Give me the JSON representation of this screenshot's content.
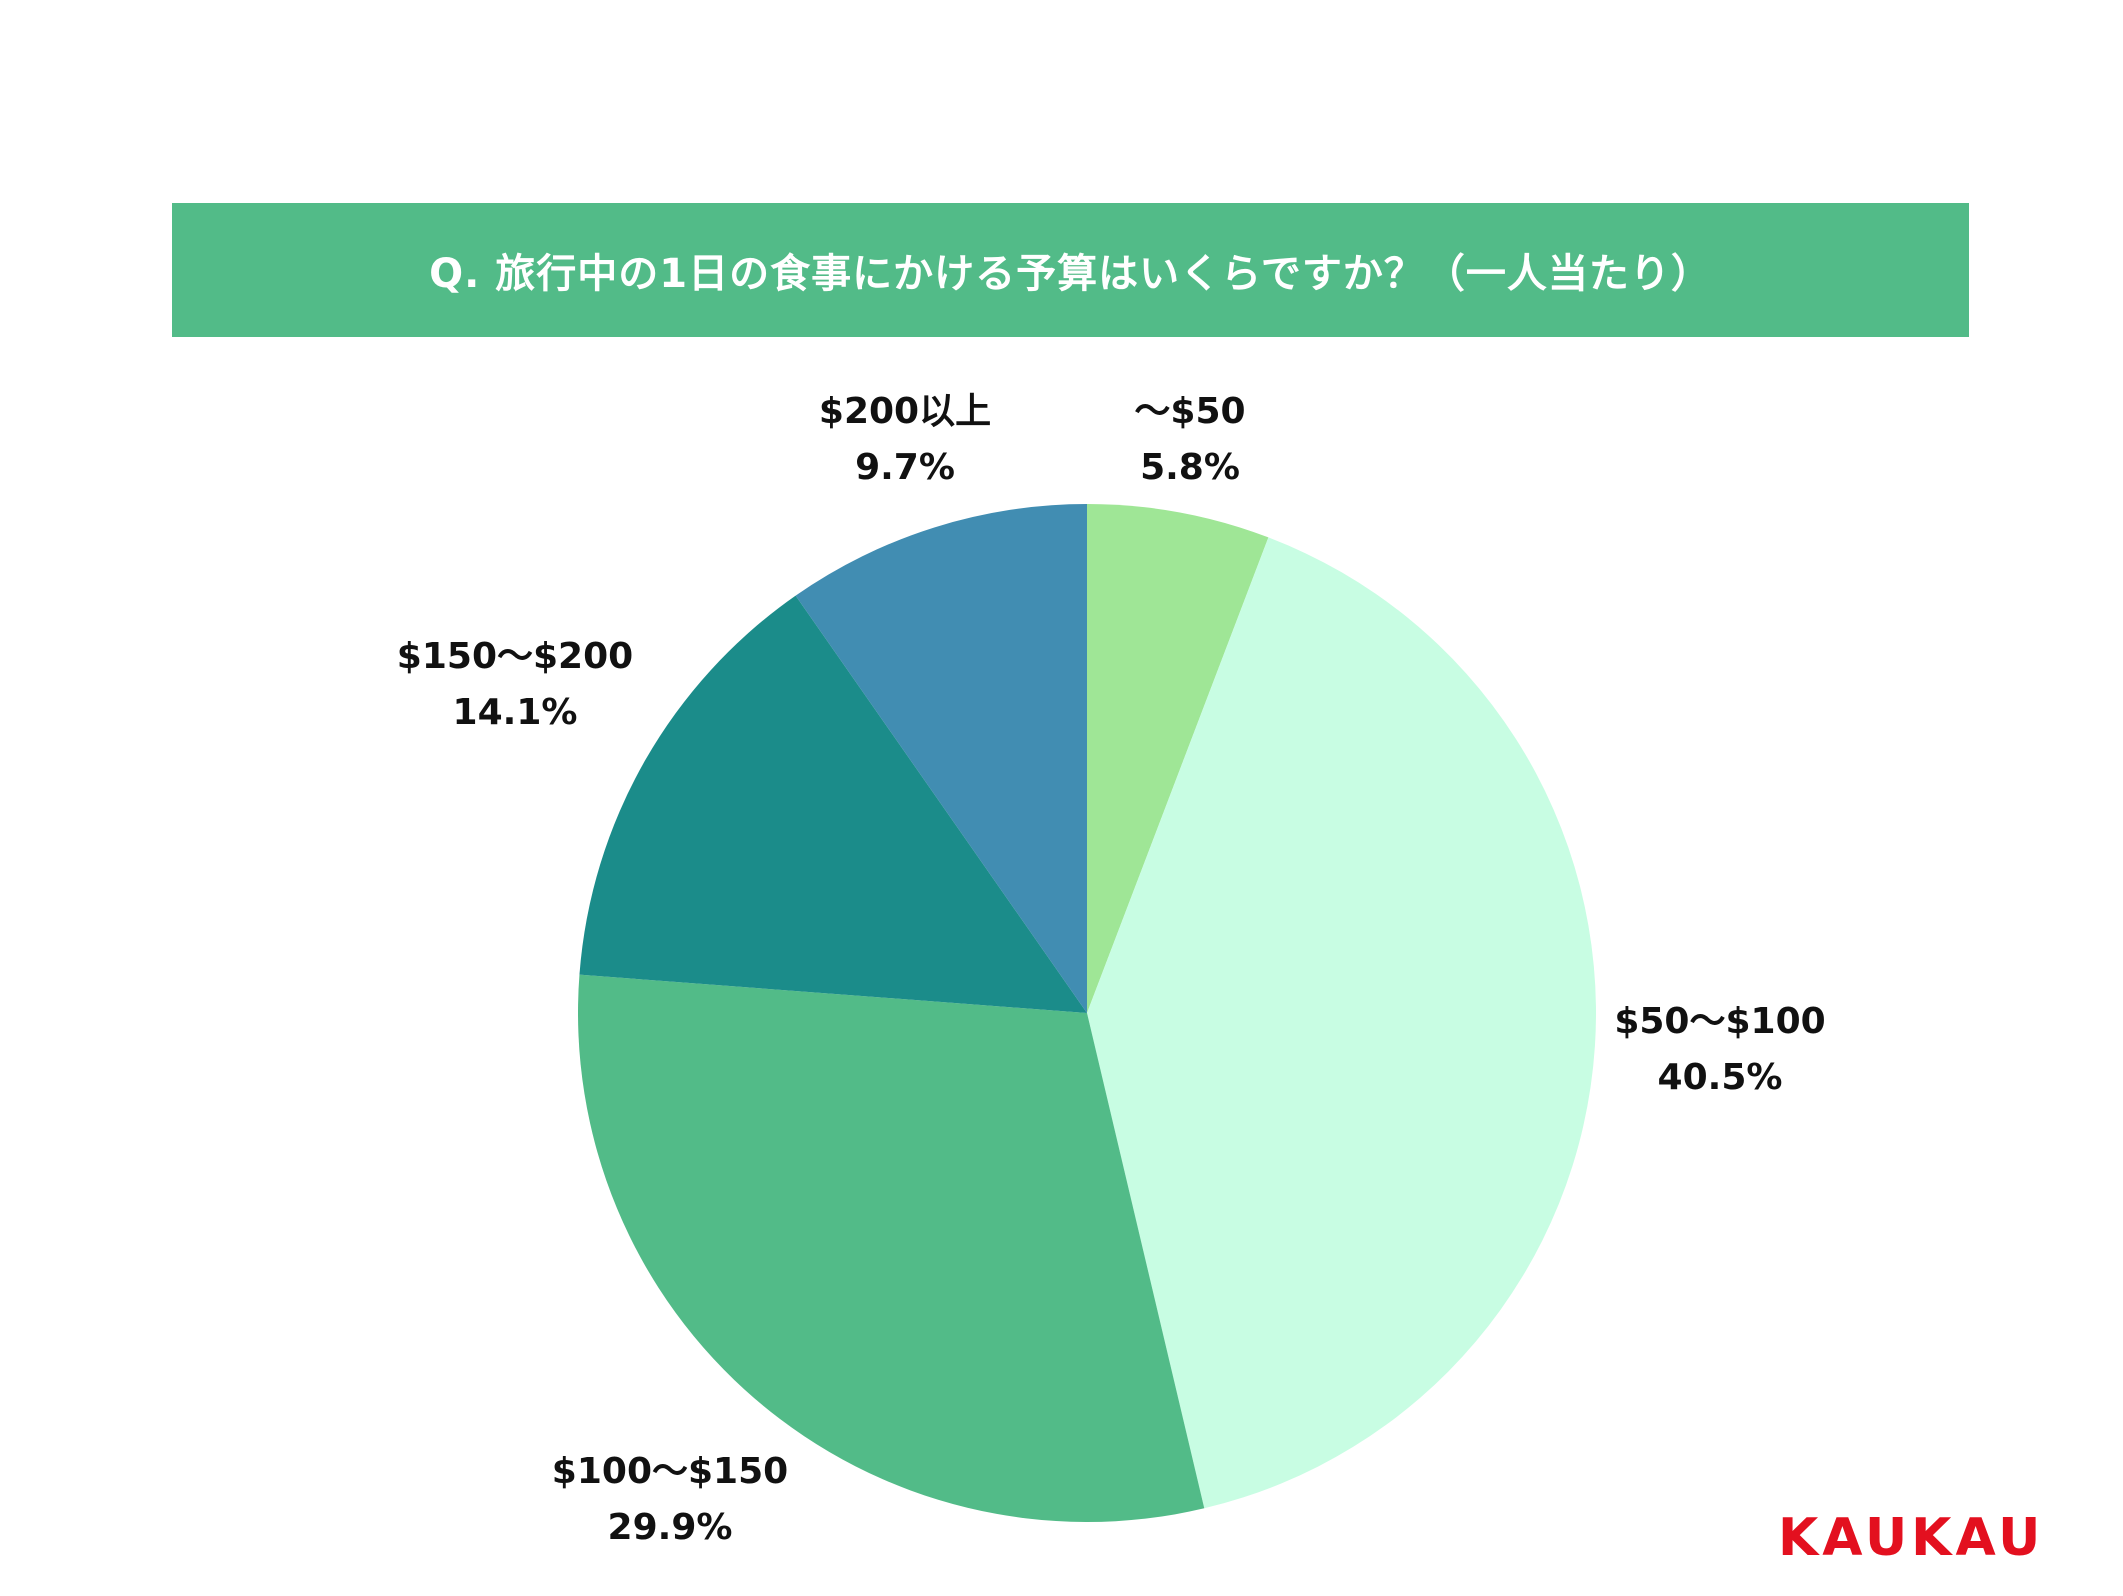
{
  "header": {
    "title": "Q. 旅行中の1日の食事にかける予算はいくらですか？（一人当たり）"
  },
  "chart_data": {
    "type": "pie",
    "title": "Q. 旅行中の1日の食事にかける予算はいくらですか？（一人当たり）",
    "categories": [
      "〜$50",
      "$50〜$100",
      "$100〜$150",
      "$150〜$200",
      "$200以上"
    ],
    "values": [
      5.8,
      40.5,
      29.9,
      14.1,
      9.7
    ],
    "value_labels": [
      "5.8%",
      "40.5%",
      "29.9%",
      "14.1%",
      "9.7%"
    ],
    "colors": [
      "#9fe696",
      "#c8fde3",
      "#52bb88",
      "#1b8c8a",
      "#418db2"
    ],
    "start": "12 o'clock",
    "direction": "clockwise",
    "legend": "none (labels outside slices)"
  },
  "brand": {
    "logo_text": "KAUKAU",
    "color": "#e3101f"
  }
}
